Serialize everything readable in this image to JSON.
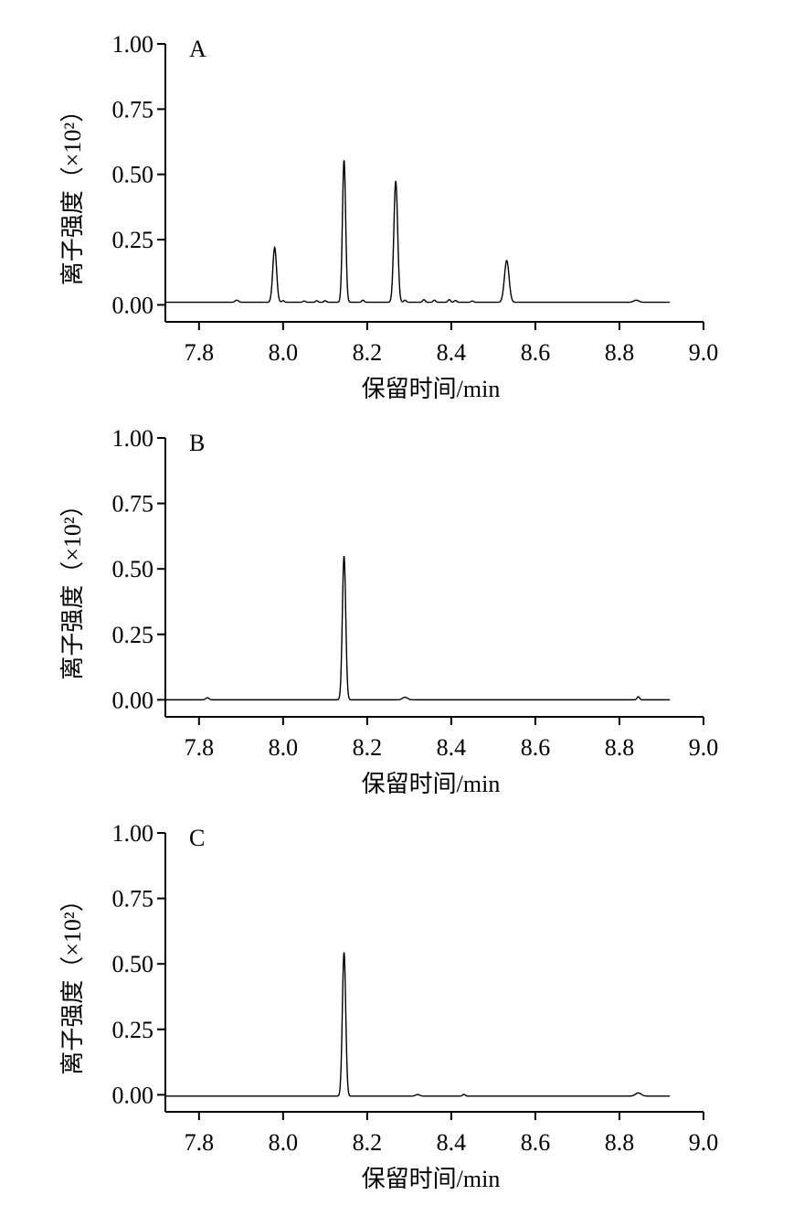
{
  "chart_data": [
    {
      "type": "line",
      "panel_label": "A",
      "xlabel": "保留时间/min",
      "ylabel": "离子强度（×10²）",
      "xlim": [
        7.72,
        9.0
      ],
      "ylim": [
        -0.065,
        1.0
      ],
      "x_ticks": [
        7.8,
        8.0,
        8.2,
        8.4,
        8.6,
        8.8,
        9.0
      ],
      "x_tick_labels": [
        "7.8",
        "8.0",
        "8.2",
        "8.4",
        "8.6",
        "8.8",
        "9.0"
      ],
      "y_ticks": [
        0.0,
        0.25,
        0.5,
        0.75,
        1.0
      ],
      "y_tick_labels": [
        "0.00",
        "0.25",
        "0.50",
        "0.75",
        "1.00"
      ],
      "grid": false,
      "x_range": [
        7.72,
        8.92
      ],
      "baseline": 0.01,
      "peaks": [
        {
          "rt": 7.89,
          "height": 0.008,
          "width": 0.004
        },
        {
          "rt": 7.98,
          "height": 0.21,
          "width": 0.0045
        },
        {
          "rt": 8.0,
          "height": 0.006,
          "width": 0.003
        },
        {
          "rt": 8.05,
          "height": 0.005,
          "width": 0.003
        },
        {
          "rt": 8.08,
          "height": 0.006,
          "width": 0.003
        },
        {
          "rt": 8.1,
          "height": 0.006,
          "width": 0.003
        },
        {
          "rt": 8.145,
          "height": 0.545,
          "width": 0.0038
        },
        {
          "rt": 8.19,
          "height": 0.008,
          "width": 0.003
        },
        {
          "rt": 8.268,
          "height": 0.465,
          "width": 0.0045
        },
        {
          "rt": 8.29,
          "height": 0.008,
          "width": 0.003
        },
        {
          "rt": 8.335,
          "height": 0.01,
          "width": 0.003
        },
        {
          "rt": 8.36,
          "height": 0.008,
          "width": 0.003
        },
        {
          "rt": 8.395,
          "height": 0.01,
          "width": 0.003
        },
        {
          "rt": 8.41,
          "height": 0.007,
          "width": 0.003
        },
        {
          "rt": 8.45,
          "height": 0.005,
          "width": 0.003
        },
        {
          "rt": 8.532,
          "height": 0.16,
          "width": 0.0055
        },
        {
          "rt": 8.84,
          "height": 0.008,
          "width": 0.006
        }
      ]
    },
    {
      "type": "line",
      "panel_label": "B",
      "xlabel": "保留时间/min",
      "ylabel": "离子强度（×10²）",
      "xlim": [
        7.72,
        9.0
      ],
      "ylim": [
        -0.065,
        1.0
      ],
      "x_ticks": [
        7.8,
        8.0,
        8.2,
        8.4,
        8.6,
        8.8,
        9.0
      ],
      "x_tick_labels": [
        "7.8",
        "8.0",
        "8.2",
        "8.4",
        "8.6",
        "8.8",
        "9.0"
      ],
      "y_ticks": [
        0.0,
        0.25,
        0.5,
        0.75,
        1.0
      ],
      "y_tick_labels": [
        "0.00",
        "0.25",
        "0.50",
        "0.75",
        "1.00"
      ],
      "grid": false,
      "x_range": [
        7.72,
        8.92
      ],
      "baseline": 0.0,
      "peaks": [
        {
          "rt": 7.82,
          "height": 0.008,
          "width": 0.004
        },
        {
          "rt": 8.145,
          "height": 0.55,
          "width": 0.004
        },
        {
          "rt": 8.29,
          "height": 0.01,
          "width": 0.006
        },
        {
          "rt": 8.845,
          "height": 0.012,
          "width": 0.003
        }
      ]
    },
    {
      "type": "line",
      "panel_label": "C",
      "xlabel": "保留时间/min",
      "ylabel": "离子强度（×10²）",
      "xlim": [
        7.72,
        9.0
      ],
      "ylim": [
        -0.065,
        1.0
      ],
      "x_ticks": [
        7.8,
        8.0,
        8.2,
        8.4,
        8.6,
        8.8,
        9.0
      ],
      "x_tick_labels": [
        "7.8",
        "8.0",
        "8.2",
        "8.4",
        "8.6",
        "8.8",
        "9.0"
      ],
      "y_ticks": [
        0.0,
        0.25,
        0.5,
        0.75,
        1.0
      ],
      "y_tick_labels": [
        "0.00",
        "0.25",
        "0.50",
        "0.75",
        "1.00"
      ],
      "grid": false,
      "x_range": [
        7.72,
        8.92
      ],
      "baseline": -0.005,
      "peaks": [
        {
          "rt": 8.145,
          "height": 0.55,
          "width": 0.004
        },
        {
          "rt": 8.32,
          "height": 0.006,
          "width": 0.005
        },
        {
          "rt": 8.43,
          "height": 0.007,
          "width": 0.003
        },
        {
          "rt": 8.845,
          "height": 0.012,
          "width": 0.007
        }
      ]
    }
  ]
}
